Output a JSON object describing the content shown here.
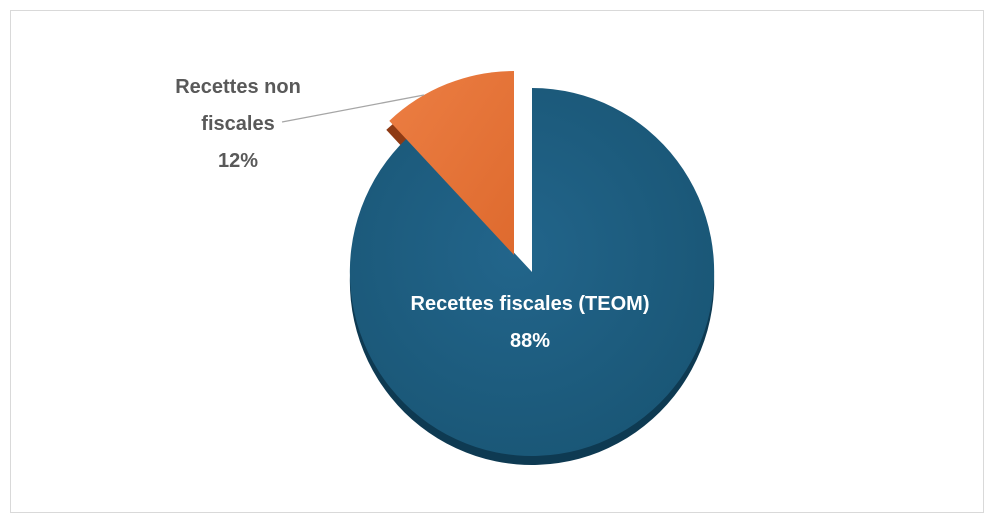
{
  "chart_data": {
    "type": "pie",
    "categories": [
      "Recettes fiscales (TEOM)",
      "Recettes non fiscales"
    ],
    "values": [
      88,
      12
    ],
    "labels": [
      {
        "name": "Recettes fiscales (TEOM)",
        "value": "88%"
      },
      {
        "name_line1": "Recettes non",
        "name_line2": "fiscales",
        "value": "12%"
      }
    ],
    "colors": [
      "#1F5C7F",
      "#E8763A"
    ],
    "exploded_slice": "Recettes non fiscales",
    "legend": "none"
  }
}
